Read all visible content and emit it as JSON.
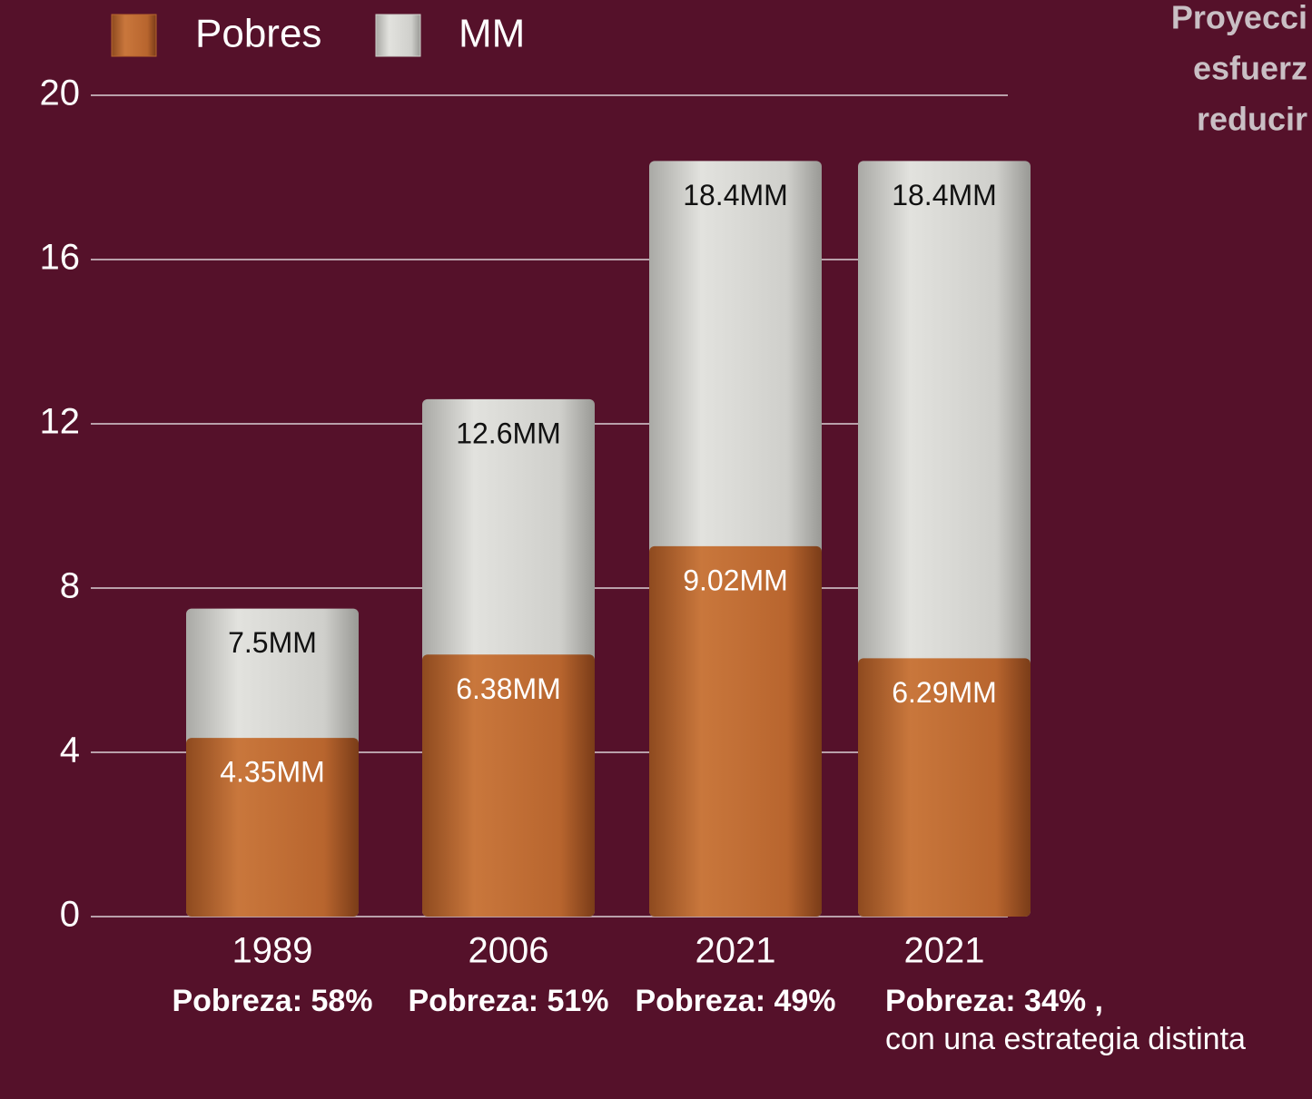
{
  "chart_data": {
    "type": "bar",
    "title_lines": [
      "Proyecci",
      "esfuerz",
      "reducir"
    ],
    "categories": [
      "1989",
      "2006",
      "2021",
      "2021"
    ],
    "notes": [
      {
        "label": "Pobreza: 58%"
      },
      {
        "label": "Pobreza: 51%"
      },
      {
        "label": "Pobreza: 49%"
      },
      {
        "label": "Pobreza: 34%",
        "tail": ",",
        "detail": "con una estrategia distinta"
      }
    ],
    "series": [
      {
        "name": "Pobres",
        "color": "#b8652e",
        "values": [
          4.35,
          6.38,
          9.02,
          6.29
        ],
        "value_labels": [
          "4.35MM",
          "6.38MM",
          "9.02MM",
          "6.29MM"
        ]
      },
      {
        "name": "MM",
        "color": "#cfcfcb",
        "values": [
          7.5,
          12.6,
          18.4,
          18.4
        ],
        "value_labels": [
          "7.5MM",
          "12.6MM",
          "18.4MM",
          "18.4MM"
        ]
      }
    ],
    "ylim": [
      0,
      20
    ],
    "yticks": [
      0,
      4,
      8,
      12,
      16,
      20
    ],
    "grid": true,
    "legend": "top-left"
  }
}
